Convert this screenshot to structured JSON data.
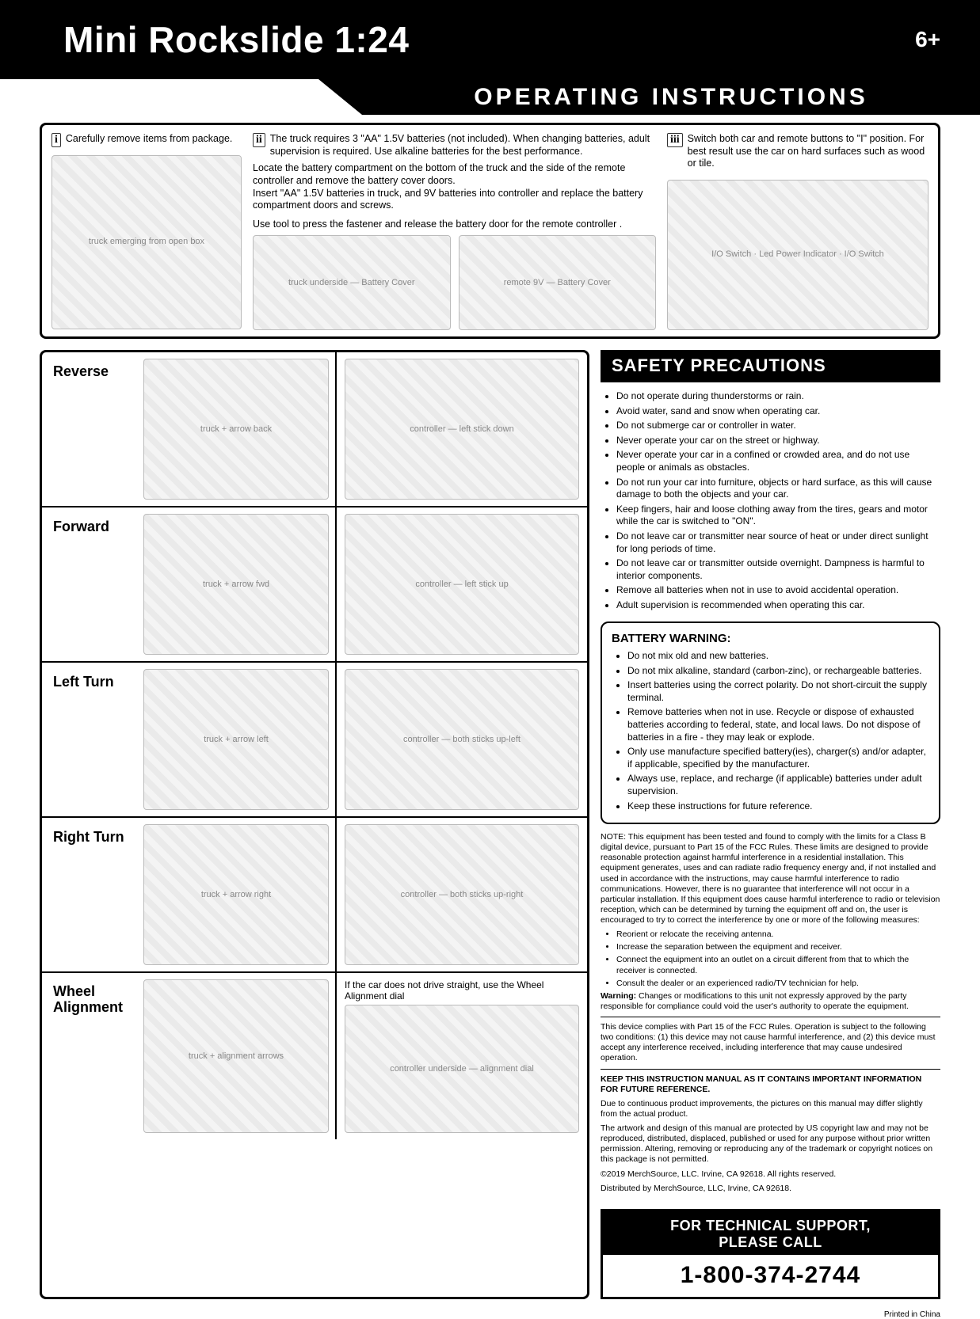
{
  "header": {
    "title": "Mini Rockslide 1:24",
    "age": "6+",
    "operating_title": "OPERATING INSTRUCTIONS"
  },
  "setup": {
    "step1": {
      "roman": "i",
      "text": "Carefully remove items from package.",
      "diagram_label": "truck emerging from open box"
    },
    "step2": {
      "roman": "ii",
      "p1": "The truck requires 3 \"AA\" 1.5V batteries (not included). When changing batteries, adult supervision is required. Use alkaline batteries for the best performance.",
      "p2": "Locate the battery compartment on the bottom of the truck  and the side of the remote controller and remove the battery cover doors.\nInsert \"AA\" 1.5V batteries in truck, and 9V batteries into controller and replace the battery compartment doors and screws.",
      "p3": "Use tool to press the fastener and release the battery door for the remote controller .",
      "diagram_truck": "truck underside — Battery Cover",
      "diagram_remote": "remote 9V — Battery Cover"
    },
    "step3": {
      "roman": "iii",
      "text": "Switch both car and remote buttons to \"I\" position. For best result use the car on hard surfaces such as wood or tile.",
      "diagram_label": "I/O Switch · Led Power Indicator · I/O Switch"
    }
  },
  "controls": [
    {
      "label": "Reverse",
      "car": "truck + arrow back",
      "remote": "controller — left stick down"
    },
    {
      "label": "Forward",
      "car": "truck + arrow fwd",
      "remote": "controller — left stick up"
    },
    {
      "label": "Left Turn",
      "car": "truck + arrow left",
      "remote": "controller — both sticks up-left"
    },
    {
      "label": "Right Turn",
      "car": "truck + arrow right",
      "remote": "controller — both sticks up-right"
    }
  ],
  "wheel_alignment": {
    "label": "Wheel Alignment",
    "note": "If the car does not drive straight, use the Wheel Alignment dial",
    "car": "truck + alignment arrows",
    "remote": "controller underside — alignment dial"
  },
  "safety": {
    "title": "SAFETY PRECAUTIONS",
    "items": [
      "Do not operate during thunderstorms or rain.",
      "Avoid water, sand and snow when operating car.",
      "Do not submerge car or controller in water.",
      "Never operate your car on the street or highway.",
      "Never operate your car in a confined or crowded area, and do not use people or animals as obstacles.",
      "Do not run your car into furniture, objects or hard surface, as this will cause damage to both the objects and your car.",
      "Keep fingers, hair and loose clothing away from the tires, gears and motor while the car is switched to \"ON\".",
      "Do not leave car or transmitter near source of heat or under direct sunlight for long periods of time.",
      "Do not leave car or transmitter outside overnight. Dampness is harmful to interior components.",
      "Remove all batteries when not in use to avoid accidental operation.",
      "Adult supervision is recommended when operating this car."
    ]
  },
  "battery": {
    "title": "BATTERY WARNING:",
    "items": [
      "Do not mix old and new batteries.",
      "Do not mix alkaline, standard (carbon-zinc), or rechargeable batteries.",
      "Insert batteries using the correct polarity. Do not short-circuit the supply terminal.",
      "Remove batteries when not in use. Recycle or dispose of exhausted batteries according to federal, state, and local laws. Do not dispose of batteries in a fire - they may leak or explode.",
      "Only use manufacture specified battery(ies), charger(s) and/or adapter, if applicable, specified by the manufacturer.",
      "Always use, replace, and recharge (if applicable) batteries under adult supervision.",
      "Keep these instructions for future reference."
    ]
  },
  "fcc": {
    "note": "NOTE: This equipment has been tested and found to comply with the limits for a Class B digital device, pursuant to Part 15 of the FCC Rules. These limits are designed to provide reasonable protection against harmful interference in a residential installation. This equipment generates, uses and can radiate radio frequency energy and, if not installed and used in accordance with the instructions, may cause harmful interference to radio communications. However, there is no guarantee that interference will not occur in a particular installation. If this equipment does cause harmful interference to radio or television reception, which can be determined by turning the equipment off and on, the user is encouraged to try to correct the interference by one or more of the following measures:",
    "measures": [
      "Reorient or relocate the receiving antenna.",
      "Increase the separation between the equipment and receiver.",
      "Connect the equipment into an outlet on a circuit different from that to which the receiver is connected.",
      "Consult the dealer or an experienced radio/TV technician for help."
    ],
    "warning": "Warning: Changes or modifications to this unit not expressly approved by the party responsible for compliance could void the user's authority to operate the equipment.",
    "part15": "This device complies with Part 15 of the FCC Rules. Operation is subject to the following two conditions: (1) this device may not cause harmful interference, and (2) this device must accept any interference received, including interference that may cause undesired operation.",
    "keep": "KEEP THIS INSTRUCTION MANUAL AS IT CONTAINS IMPORTANT INFORMATION FOR FUTURE REFERENCE.",
    "improve": "Due to continuous product improvements, the pictures on this manual may differ slightly from the actual product.",
    "copyright": "The artwork and design of this manual are protected by US copyright law and may not be reproduced, distributed, displaced, published or used for any purpose without prior written permission. Altering, removing or reproducing any of the trademark or copyright notices on this package is not permitted.",
    "rights": "©2019 MerchSource, LLC. Irvine, CA 92618. All rights reserved.",
    "dist": "Distributed by MerchSource, LLC, Irvine, CA 92618."
  },
  "support": {
    "line1": "FOR TECHNICAL SUPPORT,",
    "line2": "PLEASE CALL",
    "phone": "1-800-374-2744"
  },
  "printed": "Printed in China"
}
